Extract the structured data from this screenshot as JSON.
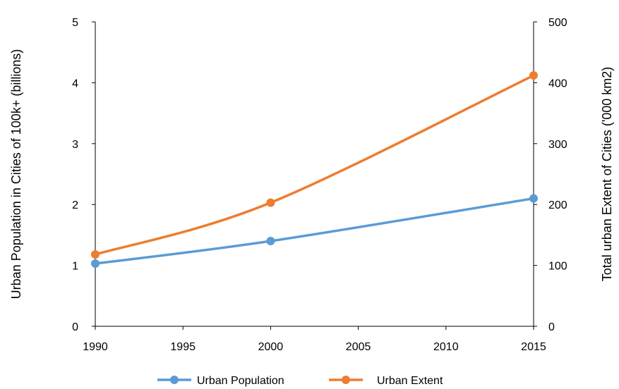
{
  "chart_data": {
    "type": "line",
    "x": [
      1990,
      2000,
      2015
    ],
    "xlim": [
      1990,
      2015
    ],
    "x_ticks": [
      1990,
      1995,
      2000,
      2005,
      2010,
      2015
    ],
    "ylabel_left": "Urban Population in Cities of 100k+ (billions)",
    "ylabel_right": "Total urban Extent of Cities ('000 km2)",
    "ylim_left": [
      0,
      5
    ],
    "ylim_right": [
      0,
      500
    ],
    "y_ticks_left": [
      0,
      1,
      2,
      3,
      4,
      5
    ],
    "y_ticks_right": [
      0,
      100,
      200,
      300,
      400,
      500
    ],
    "grid": "none",
    "legend_position": "bottom",
    "series": [
      {
        "name": "Urban Population",
        "axis": "left",
        "color": "#5b9bd5",
        "values": [
          1.03,
          1.4,
          2.1
        ]
      },
      {
        "name": "Urban Extent",
        "axis": "right",
        "color": "#ed7d31",
        "values": [
          118,
          203,
          412
        ]
      }
    ]
  }
}
